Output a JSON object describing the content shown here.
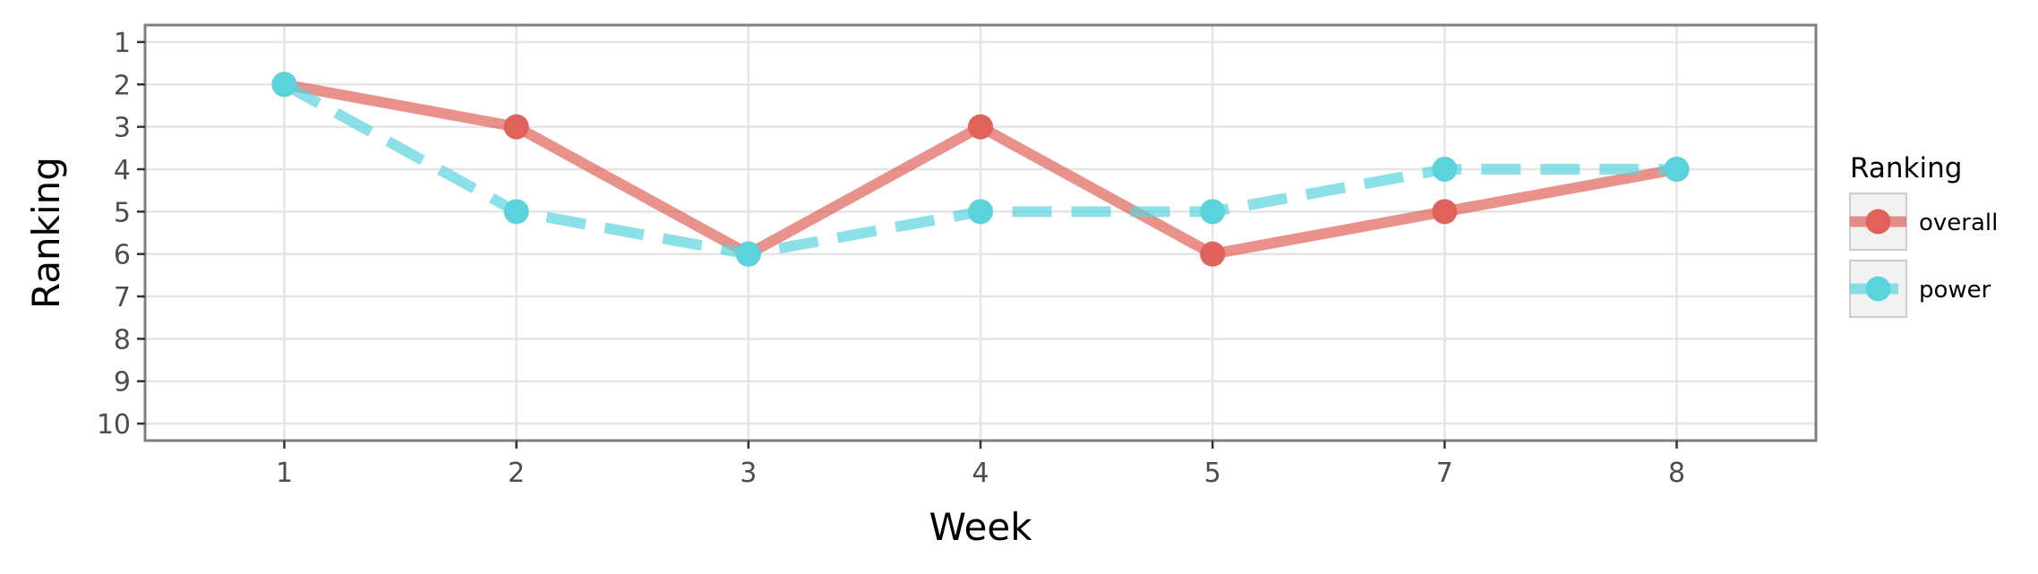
{
  "chart_data": {
    "type": "line",
    "xlabel": "Week",
    "ylabel": "Ranking",
    "categories": [
      "1",
      "2",
      "3",
      "4",
      "5",
      "7",
      "8"
    ],
    "y_ticks": [
      "1",
      "2",
      "3",
      "4",
      "5",
      "6",
      "7",
      "8",
      "9",
      "10"
    ],
    "ylim": [
      10.4,
      0.6
    ],
    "y_reversed": true,
    "grid": true,
    "legend": {
      "title": "Ranking",
      "position": "right"
    },
    "series": [
      {
        "name": "overall",
        "values": [
          2,
          3,
          6,
          3,
          6,
          5,
          4
        ],
        "color": "#e0625a",
        "line_style": "solid"
      },
      {
        "name": "power",
        "values": [
          2,
          5,
          6,
          5,
          5,
          4,
          4
        ],
        "color": "#5bd3dd",
        "line_style": "dashed"
      }
    ]
  }
}
